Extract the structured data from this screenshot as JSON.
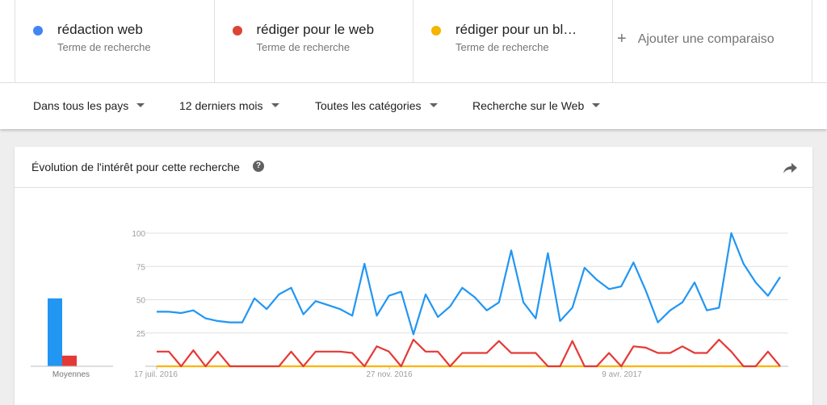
{
  "terms": [
    {
      "label": "rédaction web",
      "sub": "Terme de recherche",
      "color": "#4285f4"
    },
    {
      "label": "rédiger pour le web",
      "sub": "Terme de recherche",
      "color": "#db4437"
    },
    {
      "label": "rédiger pour un bl…",
      "sub": "Terme de recherche",
      "color": "#f4b400"
    }
  ],
  "add_comparison": "Ajouter une comparaiso",
  "filters": {
    "country": "Dans tous les pays",
    "period": "12 derniers mois",
    "category": "Toutes les catégories",
    "search_type": "Recherche sur le Web"
  },
  "card": {
    "title": "Évolution de l'intérêt pour cette recherche",
    "help_icon": "help-icon",
    "share_icon": "share-icon"
  },
  "chart_data": {
    "type": "line",
    "ylim": [
      0,
      100
    ],
    "y_ticks": [
      25,
      50,
      75,
      100
    ],
    "x_tick_labels": [
      "17 juil. 2016",
      "27 nov. 2016",
      "9 avr. 2017"
    ],
    "grid": true,
    "averages": {
      "label": "Moyennes",
      "values": [
        51,
        8,
        0
      ],
      "colors": [
        "#2196f3",
        "#e53935",
        "#ffb300"
      ]
    },
    "series": [
      {
        "color": "#2196f3",
        "values": [
          41,
          41,
          40,
          42,
          36,
          34,
          33,
          33,
          51,
          43,
          54,
          59,
          39,
          49,
          46,
          43,
          38,
          77,
          38,
          53,
          56,
          24,
          54,
          37,
          45,
          59,
          52,
          42,
          48,
          87,
          48,
          36,
          85,
          34,
          44,
          74,
          65,
          58,
          60,
          78,
          57,
          33,
          42,
          48,
          63,
          42,
          44,
          100,
          77,
          63,
          53,
          67
        ]
      },
      {
        "color": "#e53935",
        "values": [
          11,
          11,
          0,
          12,
          0,
          11,
          0,
          0,
          0,
          0,
          0,
          11,
          0,
          11,
          11,
          11,
          10,
          0,
          15,
          11,
          0,
          20,
          11,
          11,
          0,
          10,
          10,
          10,
          19,
          10,
          10,
          10,
          0,
          0,
          19,
          0,
          0,
          10,
          0,
          15,
          14,
          10,
          10,
          15,
          10,
          10,
          20,
          11,
          0,
          0,
          11,
          0
        ]
      },
      {
        "color": "#ffb300",
        "values": [
          0,
          0,
          0,
          0,
          0,
          0,
          0,
          0,
          0,
          0,
          0,
          0,
          0,
          0,
          0,
          0,
          0,
          0,
          0,
          0,
          0,
          0,
          0,
          0,
          0,
          0,
          0,
          0,
          0,
          0,
          0,
          0,
          0,
          0,
          0,
          0,
          0,
          0,
          0,
          0,
          0,
          0,
          0,
          0,
          0,
          0,
          0,
          0,
          0,
          0,
          0,
          0
        ]
      }
    ]
  }
}
